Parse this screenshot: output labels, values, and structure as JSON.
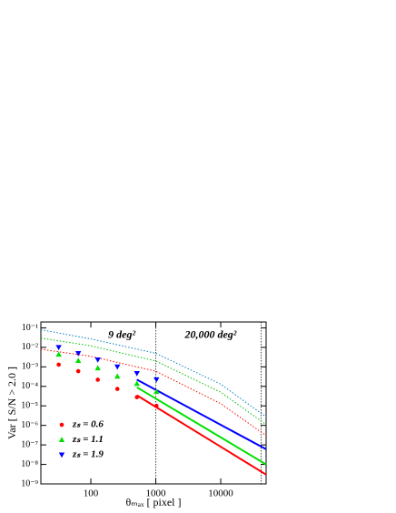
{
  "chart_data": {
    "type": "scatter",
    "xlabel": "θₘₐₓ [ pixel ]",
    "ylabel": "Var [ S/N > 2.0 ]",
    "xscale": "log",
    "yscale": "log",
    "xlim": [
      17,
      50000
    ],
    "ylim": [
      1e-09,
      0.2
    ],
    "xticks": [
      100,
      1000,
      10000
    ],
    "yticks": [
      {
        "value": 0.1,
        "label": "10⁻¹"
      },
      {
        "value": 0.01,
        "label": "10⁻²"
      },
      {
        "value": 0.001,
        "label": "10⁻³"
      },
      {
        "value": 0.0001,
        "label": "10⁻⁴"
      },
      {
        "value": 1e-05,
        "label": "10⁻⁵"
      },
      {
        "value": 1e-06,
        "label": "10⁻⁶"
      },
      {
        "value": 1e-07,
        "label": "10⁻⁷"
      },
      {
        "value": 1e-08,
        "label": "10⁻⁸"
      },
      {
        "value": 1e-09,
        "label": "10⁻⁹"
      }
    ],
    "legend": "lower left",
    "series": [
      {
        "name": "zₛ = 0.6",
        "color": "#ff0000",
        "marker": "circle",
        "x": [
          32,
          64,
          128,
          256,
          512,
          1024
        ],
        "values": [
          0.0013,
          0.0006,
          0.00022,
          7.4e-05,
          2.8e-05,
          1e-05
        ]
      },
      {
        "name": "zₛ = 1.1",
        "color": "#00e000",
        "marker": "triangle-up",
        "x": [
          32,
          64,
          128,
          256,
          512,
          1024
        ],
        "values": [
          0.0044,
          0.0021,
          0.00088,
          0.00033,
          0.00014,
          5.4e-05
        ]
      },
      {
        "name": "zₛ = 1.9",
        "color": "#0000ff",
        "marker": "triangle-down",
        "x": [
          32,
          64,
          128,
          256,
          512,
          1024
        ],
        "values": [
          0.01,
          0.0049,
          0.0023,
          0.001,
          0.00046,
          0.00022
        ]
      }
    ],
    "lines": [
      {
        "color": "#ff0000",
        "style": "solid",
        "x": [
          512,
          50000
        ],
        "values": [
          3.5e-05,
          3e-09
        ]
      },
      {
        "color": "#00e000",
        "style": "solid",
        "x": [
          512,
          50000
        ],
        "values": [
          9e-05,
          1e-08
        ]
      },
      {
        "color": "#0000ff",
        "style": "solid",
        "x": [
          512,
          50000
        ],
        "values": [
          0.00022,
          6e-08
        ]
      },
      {
        "color": "#ff0000",
        "style": "dotted",
        "x": [
          17,
          100,
          1000,
          10000,
          50000
        ],
        "values": [
          0.008,
          0.0035,
          0.0006,
          1.3e-05,
          3e-07
        ]
      },
      {
        "color": "#00c000",
        "style": "dotted",
        "x": [
          17,
          100,
          1000,
          10000,
          50000
        ],
        "values": [
          0.03,
          0.012,
          0.002,
          5e-05,
          1.1e-06
        ]
      },
      {
        "color": "#0080c0",
        "style": "dotted",
        "x": [
          17,
          100,
          1000,
          10000,
          50000
        ],
        "values": [
          0.08,
          0.027,
          0.005,
          0.00013,
          2.7e-06
        ]
      }
    ],
    "vlines": [
      1000,
      42000
    ],
    "annotations": [
      {
        "text": "9 deg²",
        "x": 300,
        "y": 0.04
      },
      {
        "text": "20,000 deg²",
        "x": 7000,
        "y": 0.04
      }
    ]
  }
}
